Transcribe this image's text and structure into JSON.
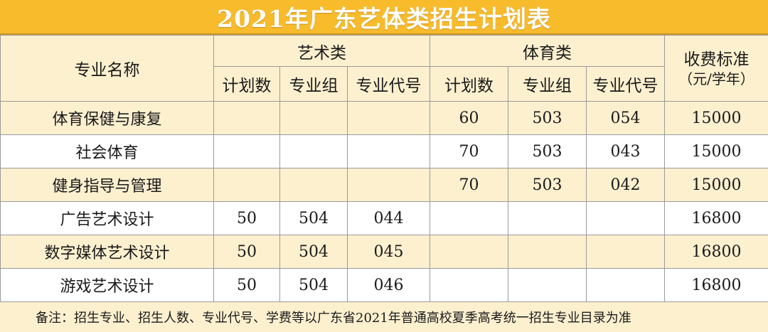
{
  "title": "2021年广东艺体类招生计划表",
  "colors": {
    "title_bg": "#f7bb2c",
    "shade_row": "#fdf0cf",
    "border": "#9a9a9a"
  },
  "header": {
    "major_name": "专业名称",
    "art_group": "艺术类",
    "sports_group": "体育类",
    "fee": "收费标准",
    "fee_unit": "（元/学年）",
    "sub": {
      "plan": "计划数",
      "group": "专业组",
      "code": "专业代号"
    }
  },
  "rows": [
    {
      "name": "体育保健与康复",
      "art_plan": "",
      "art_group": "",
      "art_code": "",
      "sport_plan": "60",
      "sport_group": "503",
      "sport_code": "054",
      "fee": "15000"
    },
    {
      "name": "社会体育",
      "art_plan": "",
      "art_group": "",
      "art_code": "",
      "sport_plan": "70",
      "sport_group": "503",
      "sport_code": "043",
      "fee": "15000"
    },
    {
      "name": "健身指导与管理",
      "art_plan": "",
      "art_group": "",
      "art_code": "",
      "sport_plan": "70",
      "sport_group": "503",
      "sport_code": "042",
      "fee": "15000"
    },
    {
      "name": "广告艺术设计",
      "art_plan": "50",
      "art_group": "504",
      "art_code": "044",
      "sport_plan": "",
      "sport_group": "",
      "sport_code": "",
      "fee": "16800"
    },
    {
      "name": "数字媒体艺术设计",
      "art_plan": "50",
      "art_group": "504",
      "art_code": "045",
      "sport_plan": "",
      "sport_group": "",
      "sport_code": "",
      "fee": "16800"
    },
    {
      "name": "游戏艺术设计",
      "art_plan": "50",
      "art_group": "504",
      "art_code": "046",
      "sport_plan": "",
      "sport_group": "",
      "sport_code": "",
      "fee": "16800"
    }
  ],
  "note": "备注：招生专业、招生人数、专业代号、学费等以广东省2021年普通高校夏季高考统一招生专业目录为准"
}
